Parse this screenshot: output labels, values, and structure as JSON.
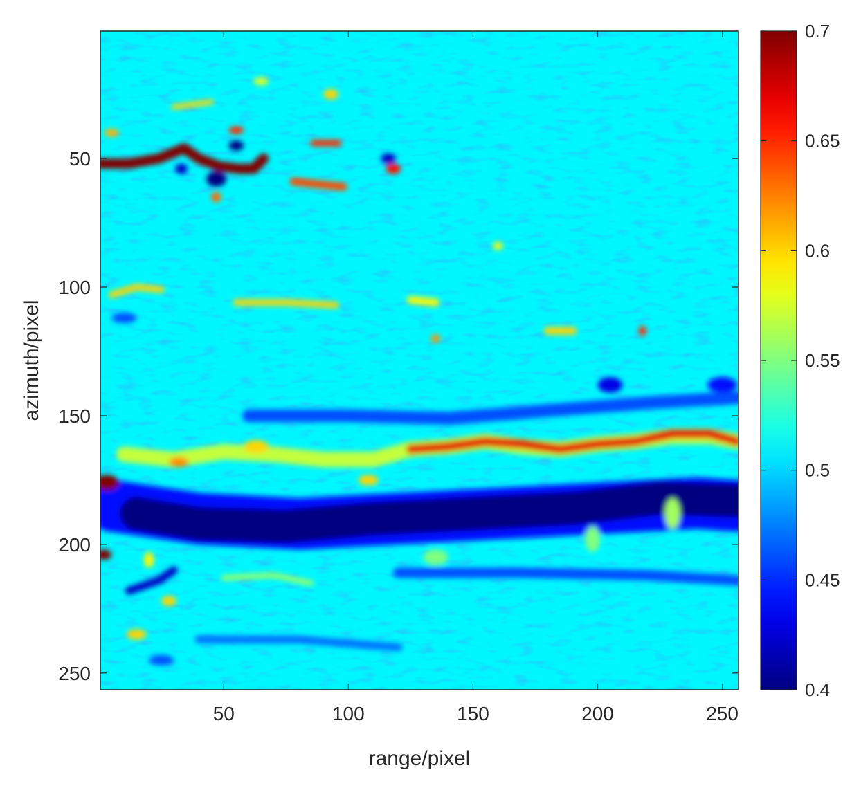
{
  "chart_data": {
    "type": "heatmap",
    "title": "",
    "xlabel": "range/pixel",
    "ylabel": "azimuth/pixel",
    "xlim": [
      1,
      256
    ],
    "ylim": [
      1,
      256
    ],
    "y_reversed": true,
    "x_ticks": [
      "50",
      "100",
      "150",
      "200",
      "250"
    ],
    "y_ticks": [
      "50",
      "100",
      "150",
      "200",
      "250"
    ],
    "colormap": "jet",
    "clim": [
      0.4,
      0.7
    ],
    "colorbar": {
      "position": "right",
      "ticks": [
        "0.4",
        "0.45",
        "0.5",
        "0.55",
        "0.6",
        "0.65",
        "0.7"
      ]
    },
    "background_value": 0.51,
    "features": [
      {
        "type": "stroke",
        "value": 0.7,
        "points": [
          [
            0,
            52
          ],
          [
            12,
            52
          ],
          [
            24,
            50
          ],
          [
            34,
            46
          ],
          [
            40,
            50
          ],
          [
            48,
            53
          ],
          [
            56,
            54
          ],
          [
            62,
            54
          ],
          [
            66,
            50
          ]
        ],
        "width": 4
      },
      {
        "type": "stroke",
        "value": 0.64,
        "points": [
          [
            78,
            59
          ],
          [
            88,
            60
          ],
          [
            98,
            61
          ]
        ],
        "width": 3
      },
      {
        "type": "stroke",
        "value": 0.65,
        "points": [
          [
            86,
            44
          ],
          [
            96,
            44
          ]
        ],
        "width": 2.5
      },
      {
        "type": "stroke",
        "value": 0.6,
        "points": [
          [
            30,
            30
          ],
          [
            45,
            28
          ]
        ],
        "width": 2
      },
      {
        "type": "stroke",
        "value": 0.6,
        "points": [
          [
            5,
            103
          ],
          [
            15,
            100
          ],
          [
            25,
            101
          ]
        ],
        "width": 2.5
      },
      {
        "type": "stroke",
        "value": 0.6,
        "points": [
          [
            55,
            106
          ],
          [
            75,
            106
          ],
          [
            95,
            107
          ]
        ],
        "width": 2.5
      },
      {
        "type": "stroke",
        "value": 0.59,
        "points": [
          [
            125,
            105
          ],
          [
            135,
            106
          ]
        ],
        "width": 3
      },
      {
        "type": "stroke",
        "value": 0.6,
        "points": [
          [
            180,
            117
          ],
          [
            190,
            117
          ]
        ],
        "width": 3
      },
      {
        "type": "stroke",
        "value": 0.57,
        "points": [
          [
            10,
            165
          ],
          [
            30,
            167
          ],
          [
            50,
            164
          ],
          [
            70,
            165
          ],
          [
            90,
            167
          ],
          [
            110,
            167
          ],
          [
            125,
            163
          ],
          [
            140,
            162
          ],
          [
            155,
            160
          ],
          [
            170,
            162
          ],
          [
            185,
            163
          ],
          [
            200,
            161
          ],
          [
            215,
            160
          ],
          [
            230,
            158
          ],
          [
            245,
            158
          ],
          [
            256,
            160
          ]
        ],
        "width": 6
      },
      {
        "type": "stroke",
        "value": 0.67,
        "points": [
          [
            125,
            163
          ],
          [
            140,
            162
          ],
          [
            155,
            160
          ],
          [
            170,
            161
          ],
          [
            185,
            163
          ],
          [
            200,
            161
          ],
          [
            215,
            160
          ],
          [
            230,
            157
          ],
          [
            245,
            157
          ],
          [
            256,
            160
          ]
        ],
        "width": 3.5
      },
      {
        "type": "stroke",
        "value": 0.56,
        "points": [
          [
            50,
            213
          ],
          [
            70,
            212
          ],
          [
            85,
            215
          ]
        ],
        "width": 2
      },
      {
        "type": "stroke",
        "value": 0.44,
        "points": [
          [
            5,
            185
          ],
          [
            40,
            190
          ],
          [
            80,
            192
          ],
          [
            120,
            190
          ],
          [
            160,
            188
          ],
          [
            200,
            186
          ],
          [
            240,
            184
          ],
          [
            256,
            185
          ]
        ],
        "width": 20
      },
      {
        "type": "stroke",
        "value": 0.4,
        "points": [
          [
            15,
            188
          ],
          [
            40,
            192
          ],
          [
            75,
            193
          ],
          [
            110,
            190
          ],
          [
            150,
            188
          ],
          [
            190,
            186
          ],
          [
            225,
            182
          ],
          [
            256,
            183
          ]
        ],
        "width": 13
      },
      {
        "type": "stroke",
        "value": 0.46,
        "points": [
          [
            60,
            150
          ],
          [
            100,
            150
          ],
          [
            140,
            151
          ],
          [
            180,
            148
          ],
          [
            220,
            145
          ],
          [
            256,
            143
          ]
        ],
        "width": 5
      },
      {
        "type": "stroke",
        "value": 0.46,
        "points": [
          [
            120,
            211
          ],
          [
            170,
            211
          ],
          [
            220,
            212
          ],
          [
            256,
            214
          ]
        ],
        "width": 4
      },
      {
        "type": "stroke",
        "value": 0.47,
        "points": [
          [
            40,
            237
          ],
          [
            80,
            237
          ],
          [
            120,
            240
          ]
        ],
        "width": 3
      },
      {
        "type": "stroke",
        "value": 0.42,
        "points": [
          [
            12,
            218
          ],
          [
            24,
            214
          ],
          [
            30,
            210
          ]
        ],
        "width": 3
      },
      {
        "type": "blob",
        "value": 0.7,
        "x": 3,
        "y": 176,
        "rx": 5,
        "ry": 3
      },
      {
        "type": "blob",
        "value": 0.7,
        "x": 2,
        "y": 204,
        "rx": 3,
        "ry": 2
      },
      {
        "type": "blob",
        "value": 0.4,
        "x": 47,
        "y": 58,
        "rx": 4,
        "ry": 3
      },
      {
        "type": "blob",
        "value": 0.4,
        "x": 55,
        "y": 45,
        "rx": 3,
        "ry": 2
      },
      {
        "type": "blob",
        "value": 0.65,
        "x": 55,
        "y": 39,
        "rx": 3,
        "ry": 1.5
      },
      {
        "type": "blob",
        "value": 0.42,
        "x": 33,
        "y": 54,
        "rx": 2.5,
        "ry": 2
      },
      {
        "type": "blob",
        "value": 0.66,
        "x": 118,
        "y": 54,
        "rx": 3,
        "ry": 2
      },
      {
        "type": "blob",
        "value": 0.42,
        "x": 116,
        "y": 50,
        "rx": 3,
        "ry": 2
      },
      {
        "type": "blob",
        "value": 0.63,
        "x": 47,
        "y": 65,
        "rx": 2,
        "ry": 2
      },
      {
        "type": "blob",
        "value": 0.6,
        "x": 93,
        "y": 25,
        "rx": 3,
        "ry": 2
      },
      {
        "type": "blob",
        "value": 0.59,
        "x": 160,
        "y": 84,
        "rx": 2,
        "ry": 1.5
      },
      {
        "type": "blob",
        "value": 0.62,
        "x": 135,
        "y": 120,
        "rx": 2,
        "ry": 1.5
      },
      {
        "type": "blob",
        "value": 0.65,
        "x": 218,
        "y": 117,
        "rx": 1.5,
        "ry": 2
      },
      {
        "type": "blob",
        "value": 0.43,
        "x": 205,
        "y": 138,
        "rx": 5,
        "ry": 3
      },
      {
        "type": "blob",
        "value": 0.44,
        "x": 250,
        "y": 138,
        "rx": 6,
        "ry": 3
      },
      {
        "type": "blob",
        "value": 0.46,
        "x": 25,
        "y": 245,
        "rx": 5,
        "ry": 2
      },
      {
        "type": "blob",
        "value": 0.6,
        "x": 15,
        "y": 235,
        "rx": 4,
        "ry": 2
      },
      {
        "type": "blob",
        "value": 0.6,
        "x": 108,
        "y": 175,
        "rx": 4,
        "ry": 2
      },
      {
        "type": "blob",
        "value": 0.6,
        "x": 63,
        "y": 162,
        "rx": 5,
        "ry": 2.5
      },
      {
        "type": "blob",
        "value": 0.62,
        "x": 32,
        "y": 168,
        "rx": 4,
        "ry": 2
      },
      {
        "type": "blob",
        "value": 0.61,
        "x": 5,
        "y": 40,
        "rx": 3,
        "ry": 1.5
      },
      {
        "type": "blob",
        "value": 0.58,
        "x": 65,
        "y": 20,
        "rx": 3,
        "ry": 1.5
      },
      {
        "type": "blob",
        "value": 0.46,
        "x": 10,
        "y": 112,
        "rx": 5,
        "ry": 2
      },
      {
        "type": "blob",
        "value": 0.6,
        "x": 28,
        "y": 222,
        "rx": 3,
        "ry": 2
      },
      {
        "type": "blob",
        "value": 0.59,
        "x": 20,
        "y": 206,
        "rx": 2,
        "ry": 3
      },
      {
        "type": "blob",
        "value": 0.56,
        "x": 230,
        "y": 188,
        "rx": 3,
        "ry": 6
      },
      {
        "type": "blob",
        "value": 0.55,
        "x": 198,
        "y": 198,
        "rx": 3,
        "ry": 5
      },
      {
        "type": "blob",
        "value": 0.55,
        "x": 135,
        "y": 205,
        "rx": 5,
        "ry": 3
      }
    ]
  }
}
